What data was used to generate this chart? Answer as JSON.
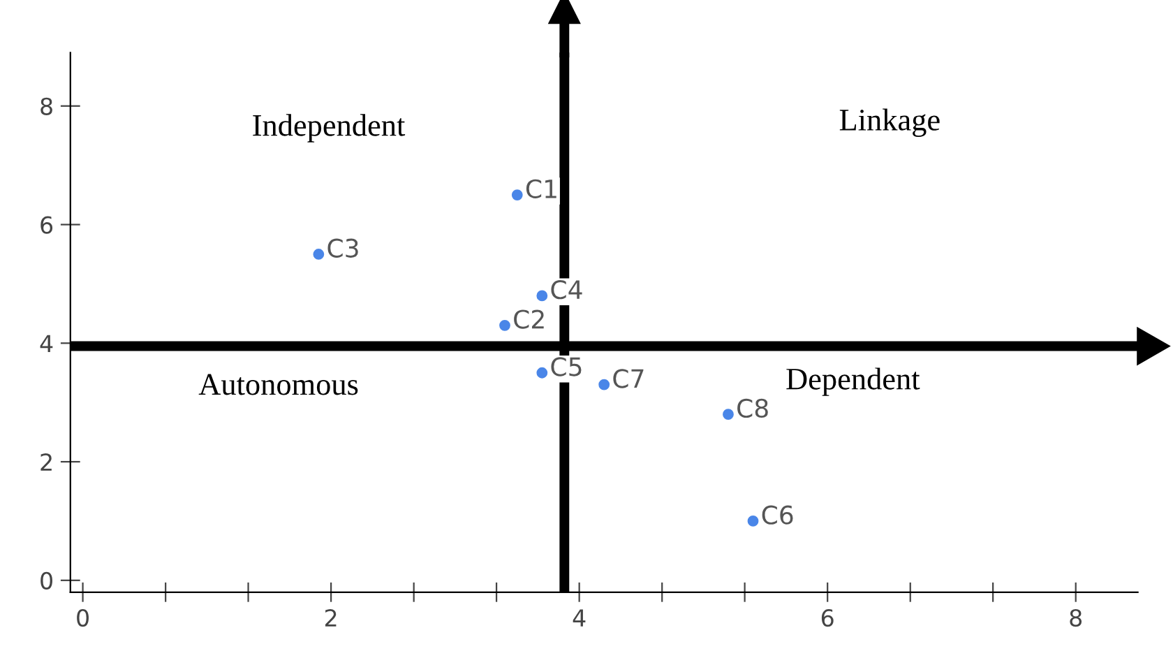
{
  "chart_data": {
    "type": "scatter",
    "x": [
      3.5,
      3.4,
      1.9,
      3.7,
      3.7,
      5.4,
      4.2,
      5.2
    ],
    "series": [
      {
        "color": "#4a86e8",
        "values": [
          6.5,
          4.3,
          5.5,
          4.8,
          3.5,
          1.0,
          3.3,
          2.8
        ]
      }
    ],
    "marker": "circle",
    "xlim": [
      -0.1,
      8.5
    ],
    "ylim": [
      -0.2,
      8.9
    ],
    "xticks": [
      0,
      {
        "value": 0.667,
        "label": null
      },
      {
        "value": 1.333,
        "label": null
      },
      2,
      {
        "value": 2.667,
        "label": null
      },
      {
        "value": 3.333,
        "label": null
      },
      4,
      {
        "value": 4.667,
        "label": null
      },
      {
        "value": 5.333,
        "label": null
      },
      6,
      {
        "value": 6.667,
        "label": null
      },
      {
        "value": 7.333,
        "label": null
      },
      8
    ],
    "yticks": [
      0,
      2,
      4,
      6,
      8
    ],
    "grid": false,
    "ref_lines": [
      {
        "axis": "x",
        "value": 3.88,
        "label": null,
        "color": "#000000"
      },
      {
        "axis": "y",
        "value": 3.95,
        "label": null,
        "color": "#000000"
      }
    ],
    "annotations": [
      "Independent",
      "Linkage",
      "Autonomous",
      "Dependent",
      {
        "text": "C1",
        "x": 3.5,
        "y": 6.5
      },
      {
        "text": "C2",
        "x": 3.4,
        "y": 4.3
      },
      {
        "text": "C3",
        "x": 1.9,
        "y": 5.5
      },
      {
        "text": "C4",
        "x": 3.7,
        "y": 4.8
      },
      {
        "text": "C5",
        "x": 3.7,
        "y": 3.5
      },
      {
        "text": "C6",
        "x": 5.4,
        "y": 1.0
      },
      {
        "text": "C7",
        "x": 4.2,
        "y": 3.3
      },
      {
        "text": "C8",
        "x": 5.2,
        "y": 2.8
      }
    ]
  }
}
